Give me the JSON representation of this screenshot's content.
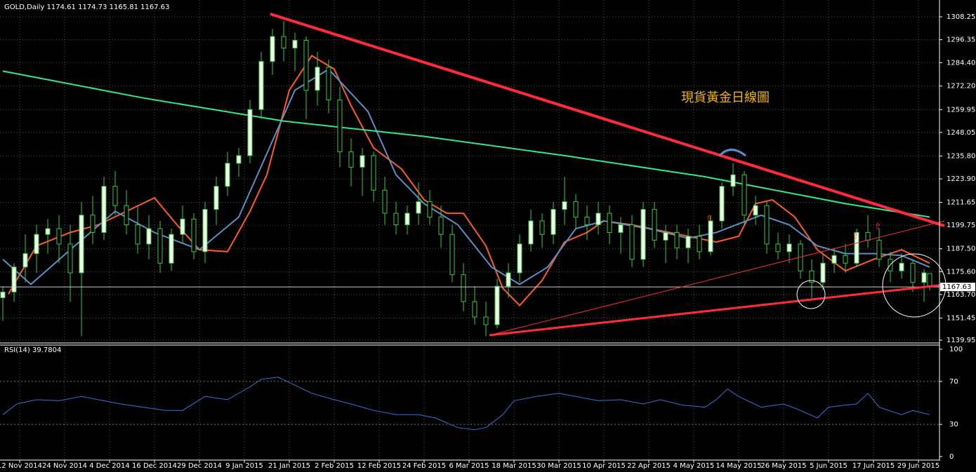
{
  "chart_data": [
    {
      "type": "candlestick",
      "title": "GOLD,Daily  1174.61 1174.73 1165.81 1167.63",
      "annotation": "現貨黃金日線圖",
      "last_price": 1167.63,
      "x": [
        0,
        2,
        4,
        6,
        8,
        10,
        12,
        14,
        16,
        18,
        20,
        22,
        24,
        26,
        28,
        30,
        32,
        34,
        36,
        38,
        40,
        42,
        44,
        46,
        48,
        50,
        52,
        54,
        56,
        58,
        60,
        62,
        64,
        66,
        68,
        70,
        72,
        74,
        76,
        78,
        80,
        82,
        84,
        86,
        88,
        90,
        92,
        94,
        96,
        98,
        100,
        102,
        104,
        106,
        108,
        110,
        112,
        114,
        116,
        118,
        120,
        122,
        124,
        126,
        128,
        130,
        132,
        134,
        136,
        138,
        140,
        142,
        144,
        146,
        148,
        150,
        152,
        154,
        156,
        158,
        160,
        162,
        164,
        165
      ],
      "ohlc": [
        [
          1162,
          1168,
          1150,
          1165
        ],
        [
          1165,
          1180,
          1160,
          1178
        ],
        [
          1178,
          1195,
          1170,
          1185
        ],
        [
          1185,
          1200,
          1175,
          1195
        ],
        [
          1195,
          1203,
          1185,
          1198
        ],
        [
          1198,
          1205,
          1180,
          1190
        ],
        [
          1190,
          1200,
          1160,
          1175
        ],
        [
          1175,
          1212,
          1142,
          1205
        ],
        [
          1205,
          1215,
          1190,
          1196
        ],
        [
          1196,
          1225,
          1192,
          1220
        ],
        [
          1220,
          1228,
          1205,
          1210
        ],
        [
          1210,
          1218,
          1195,
          1200
        ],
        [
          1200,
          1210,
          1185,
          1190
        ],
        [
          1190,
          1205,
          1182,
          1198
        ],
        [
          1198,
          1202,
          1175,
          1180
        ],
        [
          1180,
          1198,
          1176,
          1195
        ],
        [
          1195,
          1210,
          1190,
          1203
        ],
        [
          1203,
          1206,
          1182,
          1186
        ],
        [
          1186,
          1212,
          1180,
          1208
        ],
        [
          1208,
          1225,
          1200,
          1220
        ],
        [
          1220,
          1238,
          1215,
          1232
        ],
        [
          1232,
          1240,
          1225,
          1236
        ],
        [
          1236,
          1265,
          1232,
          1260
        ],
        [
          1260,
          1290,
          1255,
          1285
        ],
        [
          1285,
          1302,
          1278,
          1298
        ],
        [
          1298,
          1306,
          1285,
          1292
        ],
        [
          1292,
          1300,
          1280,
          1296
        ],
        [
          1296,
          1298,
          1255,
          1270
        ],
        [
          1270,
          1290,
          1262,
          1282
        ],
        [
          1282,
          1286,
          1258,
          1265
        ],
        [
          1265,
          1272,
          1230,
          1238
        ],
        [
          1238,
          1245,
          1220,
          1230
        ],
        [
          1230,
          1240,
          1215,
          1236
        ],
        [
          1236,
          1238,
          1212,
          1218
        ],
        [
          1218,
          1225,
          1200,
          1206
        ],
        [
          1206,
          1212,
          1195,
          1200
        ],
        [
          1200,
          1210,
          1195,
          1206
        ],
        [
          1206,
          1222,
          1200,
          1212
        ],
        [
          1212,
          1218,
          1200,
          1204
        ],
        [
          1204,
          1210,
          1188,
          1195
        ],
        [
          1195,
          1200,
          1170,
          1174
        ],
        [
          1174,
          1180,
          1155,
          1160
        ],
        [
          1160,
          1168,
          1148,
          1152
        ],
        [
          1152,
          1160,
          1142,
          1148
        ],
        [
          1148,
          1172,
          1146,
          1168
        ],
        [
          1168,
          1180,
          1162,
          1175
        ],
        [
          1175,
          1195,
          1170,
          1190
        ],
        [
          1190,
          1208,
          1186,
          1202
        ],
        [
          1202,
          1206,
          1188,
          1195
        ],
        [
          1195,
          1212,
          1190,
          1208
        ],
        [
          1208,
          1225,
          1200,
          1212
        ],
        [
          1212,
          1216,
          1198,
          1204
        ],
        [
          1204,
          1210,
          1192,
          1200
        ],
        [
          1200,
          1212,
          1195,
          1206
        ],
        [
          1206,
          1210,
          1190,
          1196
        ],
        [
          1196,
          1204,
          1185,
          1200
        ],
        [
          1200,
          1205,
          1178,
          1182
        ],
        [
          1182,
          1212,
          1178,
          1208
        ],
        [
          1208,
          1212,
          1188,
          1192
        ],
        [
          1192,
          1200,
          1180,
          1196
        ],
        [
          1196,
          1200,
          1182,
          1188
        ],
        [
          1188,
          1198,
          1180,
          1194
        ],
        [
          1194,
          1200,
          1182,
          1186
        ],
        [
          1186,
          1205,
          1184,
          1202
        ],
        [
          1202,
          1222,
          1198,
          1220
        ],
        [
          1220,
          1232,
          1215,
          1226
        ],
        [
          1226,
          1228,
          1200,
          1205
        ],
        [
          1205,
          1215,
          1200,
          1210
        ],
        [
          1210,
          1212,
          1185,
          1190
        ],
        [
          1190,
          1196,
          1182,
          1186
        ],
        [
          1186,
          1195,
          1180,
          1190
        ],
        [
          1190,
          1192,
          1172,
          1176
        ],
        [
          1176,
          1182,
          1162,
          1170
        ],
        [
          1170,
          1185,
          1166,
          1180
        ],
        [
          1180,
          1188,
          1175,
          1184
        ],
        [
          1184,
          1190,
          1175,
          1180
        ],
        [
          1180,
          1198,
          1178,
          1196
        ],
        [
          1196,
          1205,
          1188,
          1192
        ],
        [
          1192,
          1198,
          1178,
          1182
        ],
        [
          1182,
          1186,
          1170,
          1176
        ],
        [
          1176,
          1185,
          1172,
          1180
        ],
        [
          1180,
          1182,
          1165,
          1170
        ],
        [
          1170,
          1177,
          1160,
          1175
        ],
        [
          1174.61,
          1174.73,
          1165.81,
          1167.63
        ]
      ],
      "bull_color": "#f0fff0",
      "bear_color": "#000000",
      "wick_color": "#33cc33",
      "series": [
        {
          "color": "#ff5a1f",
          "x": [
            1,
            6,
            12,
            17,
            27,
            31,
            35,
            40,
            44,
            47,
            51,
            55,
            59,
            62,
            66,
            71,
            75,
            79,
            82,
            86,
            89,
            92,
            96,
            100,
            104,
            107,
            112,
            117,
            122,
            127,
            131,
            134,
            137,
            141,
            145,
            150,
            155,
            160,
            165
          ],
          "values": [
            1164,
            1189,
            1196,
            1200,
            1214,
            1200,
            1187,
            1186,
            1207,
            1226,
            1270,
            1288,
            1281,
            1262,
            1240,
            1229,
            1213,
            1206,
            1206,
            1189,
            1167,
            1158,
            1171,
            1191,
            1196,
            1202,
            1200,
            1197,
            1194,
            1191,
            1194,
            1211,
            1213,
            1204,
            1187,
            1176,
            1182,
            1187,
            1180
          ]
        },
        {
          "color": "#5b8fc7",
          "x": [
            0,
            5,
            12,
            20,
            27,
            35,
            42,
            47,
            52,
            58,
            65,
            70,
            75,
            81,
            87,
            92,
            97,
            102,
            107,
            115,
            122,
            127,
            135,
            140,
            145,
            150,
            155,
            160,
            165
          ],
          "values": [
            1182,
            1169,
            1187,
            1207,
            1196,
            1187,
            1204,
            1237,
            1270,
            1281,
            1259,
            1226,
            1211,
            1200,
            1178,
            1169,
            1178,
            1198,
            1202,
            1198,
            1193,
            1196,
            1205,
            1200,
            1189,
            1185,
            1185,
            1184,
            1178
          ]
        },
        {
          "color": "#30e890",
          "x": [
            0,
            25,
            50,
            75,
            100,
            125,
            150,
            165
          ],
          "values": [
            1280,
            1266,
            1254,
            1246,
            1236,
            1225,
            1211,
            1204
          ]
        }
      ],
      "xlim": [
        -0.5,
        166.75
      ],
      "ylim": [
        1138.85,
        1317.0
      ],
      "yticks": [
        1308.25,
        1296.35,
        {
          "value": 1284.4,
          "label": "1284.40"
        },
        {
          "value": 1272.2,
          "label": "1272.20"
        },
        1259.95,
        1248.05,
        {
          "value": 1235.8,
          "label": "1235.80"
        },
        {
          "value": 1223.9,
          "label": "1223.90"
        },
        1211.65,
        1199.75,
        {
          "value": 1187.5,
          "label": "1187.50"
        },
        {
          "value": 1175.6,
          "label": "1175.60"
        },
        {
          "value": 1163.7,
          "label": "1163.70"
        },
        1151.45,
        1139.95
      ],
      "xticks": [
        {
          "value": 3,
          "label": "12 Nov 2014"
        },
        {
          "value": 11,
          "label": "24 Nov 2014"
        },
        {
          "value": 19,
          "label": "4 Dec 2014"
        },
        {
          "value": 27,
          "label": "16 Dec 2014"
        },
        {
          "value": 35,
          "label": "29 Dec 2014"
        },
        {
          "value": 43,
          "label": "9 Jan 2015"
        },
        {
          "value": 51,
          "label": "21 Jan 2015"
        },
        {
          "value": 59,
          "label": "2 Feb 2015"
        },
        {
          "value": 67,
          "label": "12 Feb 2015"
        },
        {
          "value": 75,
          "label": "24 Feb 2015"
        },
        {
          "value": 83,
          "label": "6 Mar 2015"
        },
        {
          "value": 91,
          "label": "18 Mar 2015"
        },
        {
          "value": 99,
          "label": "30 Mar 2015"
        },
        {
          "value": 107,
          "label": "10 Apr 2015"
        },
        {
          "value": 115,
          "label": "22 Apr 2015"
        },
        {
          "value": 123,
          "label": "4 May 2015"
        },
        {
          "value": 131,
          "label": "14 May 2015"
        },
        {
          "value": 139,
          "label": "26 May 2015"
        },
        {
          "value": 147,
          "label": "5 Jun 2015"
        },
        {
          "value": 155,
          "label": "17 Jun 2015"
        },
        {
          "value": 163,
          "label": "29 Jun 2015"
        }
      ],
      "grid": true
    },
    {
      "type": "line",
      "title": "RSI(14) 39.7804",
      "x": [
        0,
        2.5,
        6,
        10,
        14,
        17,
        21,
        25,
        29,
        32,
        36,
        40,
        44,
        46,
        49,
        51,
        55,
        59,
        62,
        66,
        70,
        74,
        77,
        81,
        84,
        86,
        89,
        91,
        95,
        99,
        102,
        106,
        110,
        114,
        117,
        121,
        125,
        127,
        129,
        131,
        135,
        139,
        142,
        145,
        147,
        150,
        152,
        154,
        156,
        160,
        162,
        165
      ],
      "series": [
        {
          "color": "#3b6fd8",
          "values": [
            39,
            49,
            53,
            52,
            56,
            53,
            49,
            46,
            43,
            43,
            56,
            53,
            65,
            72,
            74,
            69,
            59,
            53,
            49,
            43,
            39,
            39,
            36,
            27,
            25,
            27,
            39,
            52,
            56,
            59,
            56,
            52,
            53,
            49,
            53,
            48,
            46,
            53,
            63,
            56,
            46,
            49,
            43,
            36,
            46,
            48,
            49,
            59,
            46,
            39,
            43,
            39
          ]
        }
      ],
      "xlim": [
        -0.5,
        166.75
      ],
      "ylim": [
        0,
        100
      ],
      "yticks": [
        100,
        70,
        30,
        0
      ],
      "gridlines": [
        70,
        30
      ]
    }
  ]
}
